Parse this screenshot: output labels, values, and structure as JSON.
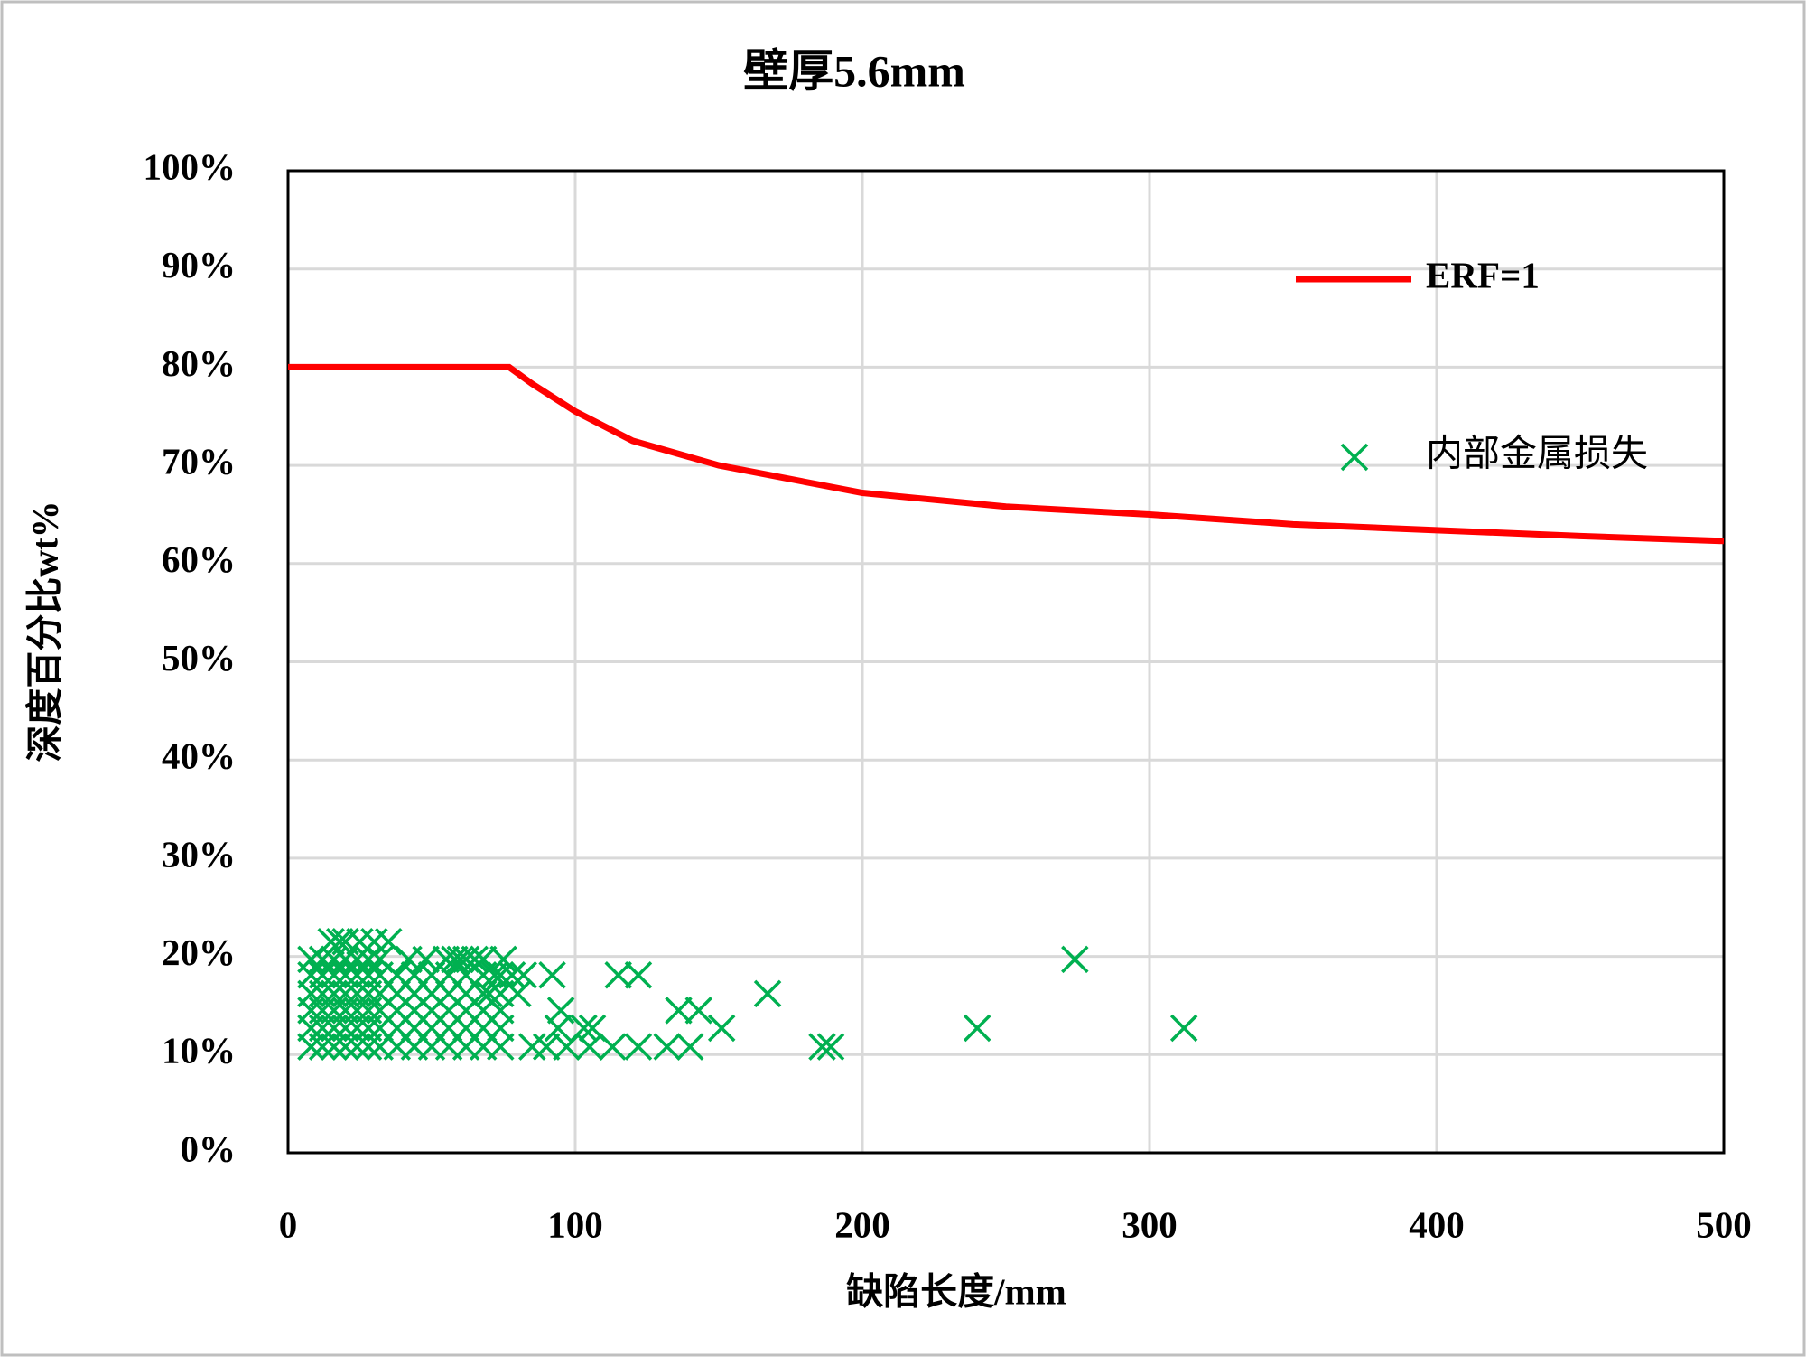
{
  "chart_data": {
    "type": "scatter",
    "title": "壁厚5.6mm",
    "x_label": "缺陷长度/mm",
    "y_label": "深度百分比wt%",
    "xlim": [
      0,
      500
    ],
    "xticks": [
      0,
      100,
      200,
      300,
      400,
      500
    ],
    "ylim": [
      0,
      100
    ],
    "yticks": [
      {
        "value": 0,
        "label": "0%"
      },
      {
        "value": 10,
        "label": "10%"
      },
      {
        "value": 20,
        "label": "20%"
      },
      {
        "value": 30,
        "label": "30%"
      },
      {
        "value": 40,
        "label": "40%"
      },
      {
        "value": 50,
        "label": "50%"
      },
      {
        "value": 60,
        "label": "60%"
      },
      {
        "value": 70,
        "label": "70%"
      },
      {
        "value": 80,
        "label": "80%"
      },
      {
        "value": 90,
        "label": "90%"
      },
      {
        "value": 100,
        "label": "100%"
      }
    ],
    "grid": true,
    "legend": "upper right",
    "series": [
      {
        "name": "ERF=1",
        "type": "line",
        "color": "#ff0000",
        "x": [
          0,
          77,
          85,
          100,
          120,
          150,
          200,
          250,
          300,
          350,
          400,
          450,
          500
        ],
        "values": [
          80,
          80,
          78.3,
          75.5,
          72.5,
          70,
          67.2,
          65.8,
          65,
          64,
          63.4,
          62.8,
          62.3
        ]
      },
      {
        "name": "内部金属损失",
        "type": "scatter",
        "color": "#00b050",
        "x": [
          274,
          312,
          240,
          186,
          189,
          167,
          151,
          143,
          136,
          140,
          132,
          122,
          115,
          122,
          113,
          106,
          103,
          105,
          95,
          94,
          92,
          97,
          90,
          85,
          82,
          80,
          78,
          75,
          72,
          70,
          68,
          65,
          62,
          60,
          58,
          55,
          48,
          42,
          35,
          30,
          25,
          20,
          18,
          15,
          8,
          12,
          16,
          20,
          24,
          28,
          32,
          38,
          44,
          50,
          56,
          62,
          68,
          74,
          8,
          12,
          16,
          20,
          24,
          28,
          32,
          38,
          44,
          50,
          56,
          62,
          68,
          74,
          8,
          12,
          16,
          20,
          24,
          28,
          32,
          38,
          44,
          50,
          56,
          62,
          68,
          74,
          8,
          12,
          16,
          20,
          24,
          28,
          32,
          38,
          44,
          50,
          56,
          62,
          68,
          74,
          8,
          12,
          16,
          20,
          24,
          28,
          32,
          38,
          44,
          50,
          56,
          62,
          68,
          74,
          8,
          12,
          16,
          20,
          24,
          28,
          32
        ],
        "values": [
          19.7,
          12.7,
          12.7,
          10.8,
          10.8,
          16.2,
          12.7,
          14.5,
          14.5,
          10.8,
          10.8,
          18.1,
          18.1,
          10.8,
          10.8,
          12.7,
          12.7,
          10.8,
          14.5,
          12.7,
          18.1,
          10.8,
          10.8,
          10.8,
          18.1,
          16.2,
          18.1,
          19.7,
          18.1,
          16.2,
          19.7,
          19.7,
          19.7,
          19.7,
          19.7,
          19.7,
          19.7,
          19.7,
          21.5,
          21.5,
          21.5,
          21.5,
          21.5,
          21.5,
          10.8,
          10.8,
          10.8,
          10.8,
          10.8,
          10.8,
          10.8,
          10.8,
          10.8,
          10.8,
          10.8,
          10.8,
          10.8,
          10.8,
          12.7,
          12.7,
          12.7,
          12.7,
          12.7,
          12.7,
          12.7,
          12.7,
          12.7,
          12.7,
          12.7,
          12.7,
          12.7,
          12.7,
          14.5,
          14.5,
          14.5,
          14.5,
          14.5,
          14.5,
          14.5,
          14.5,
          14.5,
          14.5,
          14.5,
          14.5,
          14.5,
          14.5,
          16.2,
          16.2,
          16.2,
          16.2,
          16.2,
          16.2,
          16.2,
          16.2,
          16.2,
          16.2,
          16.2,
          16.2,
          16.2,
          16.2,
          18.1,
          18.1,
          18.1,
          18.1,
          18.1,
          18.1,
          18.1,
          18.1,
          18.1,
          18.1,
          18.1,
          18.1,
          18.1,
          18.1,
          19.7,
          19.7,
          19.7,
          19.7,
          19.7,
          19.7,
          19.7
        ]
      }
    ]
  }
}
